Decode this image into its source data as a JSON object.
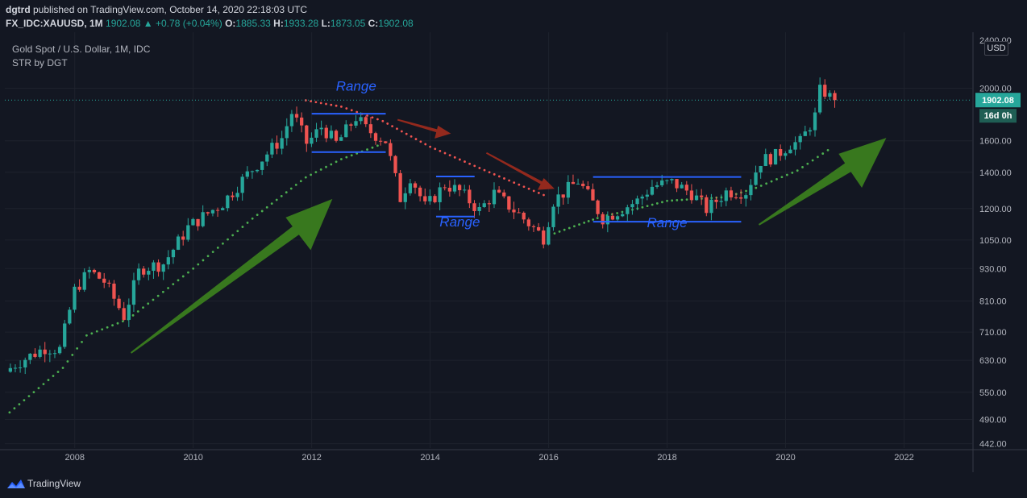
{
  "header": {
    "author": "dgtrd",
    "published_text": "published on TradingView.com, October 14, 2020 22:18:03 UTC",
    "symbol": "FX_IDC:XAUUSD, 1M",
    "last": "1902.08",
    "change": "+0.78 (+0.04%)",
    "o_label": "O:",
    "o_value": "1885.33",
    "h_label": "H:",
    "h_value": "1933.28",
    "l_label": "L:",
    "l_value": "1873.05",
    "c_label": "C:",
    "c_value": "1902.08"
  },
  "legend": {
    "title": "Gold Spot / U.S. Dollar, 1M, IDC",
    "indicator": "STR by DGT"
  },
  "price_axis": {
    "currency": "USD"
  },
  "price_badge": {
    "value": "1902.08",
    "countdown": "16d 0h"
  },
  "footer": {
    "brand": "TradingView"
  },
  "colors": {
    "background": "#131722",
    "bull": "#26a69a",
    "bear": "#ef5350",
    "range_line": "#2962ff",
    "arrow_up": "#3a7d1f",
    "arrow_down": "#9a2a1e",
    "stop_bull": "#4caf50",
    "stop_bear": "#ef5350"
  },
  "annotations": [
    {
      "text": "Range",
      "x": 2012.75,
      "y": 1980
    },
    {
      "text": "Range",
      "x": 2014.5,
      "y": 1112
    },
    {
      "text": "Range",
      "x": 2018.0,
      "y": 1108
    }
  ],
  "range_lines": [
    {
      "x1": 2012.0,
      "x2": 2013.25,
      "y": 1795
    },
    {
      "x1": 2012.0,
      "x2": 2013.25,
      "y": 1525
    },
    {
      "x1": 2014.1,
      "x2": 2014.75,
      "y": 1375
    },
    {
      "x1": 2014.1,
      "x2": 2014.75,
      "y": 1160
    },
    {
      "x1": 2016.75,
      "x2": 2019.25,
      "y": 1372
    },
    {
      "x1": 2016.75,
      "x2": 2019.25,
      "y": 1135
    }
  ],
  "arrows": [
    {
      "kind": "up",
      "x1": 2008.95,
      "y1": 650,
      "x2": 2012.35,
      "y2": 1250
    },
    {
      "kind": "down",
      "x1": 2013.45,
      "y1": 1750,
      "x2": 2014.35,
      "y2": 1650
    },
    {
      "kind": "down",
      "x1": 2014.95,
      "y1": 1520,
      "x2": 2016.1,
      "y2": 1305
    },
    {
      "kind": "up",
      "x1": 2019.55,
      "y1": 1120,
      "x2": 2021.7,
      "y2": 1620
    }
  ],
  "chart_data": {
    "type": "candlestick",
    "x_axis": {
      "unit": "year",
      "range": [
        2006.82,
        2023.15
      ],
      "ticks": [
        2008,
        2010,
        2012,
        2014,
        2016,
        2018,
        2020,
        2022
      ]
    },
    "y_axis": {
      "scale": "log",
      "unit": "USD",
      "range": [
        434,
        2520
      ],
      "ticks": [
        442,
        490,
        550,
        630,
        710,
        810,
        930,
        1050,
        1200,
        1400,
        1600,
        2000
      ],
      "top_tick_partial": "2400.00"
    },
    "grid": true,
    "last_price": 1902.08,
    "anchors": [
      {
        "t": 2006.83,
        "p": 600
      },
      {
        "t": 2007.0,
        "p": 620
      },
      {
        "t": 2007.5,
        "p": 665
      },
      {
        "t": 2007.75,
        "p": 660
      },
      {
        "t": 2008.0,
        "p": 850
      },
      {
        "t": 2008.25,
        "p": 920
      },
      {
        "t": 2008.5,
        "p": 880
      },
      {
        "t": 2008.83,
        "p": 760
      },
      {
        "t": 2009.1,
        "p": 930
      },
      {
        "t": 2009.5,
        "p": 950
      },
      {
        "t": 2009.92,
        "p": 1110
      },
      {
        "t": 2010.5,
        "p": 1230
      },
      {
        "t": 2010.92,
        "p": 1390
      },
      {
        "t": 2011.5,
        "p": 1620
      },
      {
        "t": 2011.67,
        "p": 1810
      },
      {
        "t": 2011.92,
        "p": 1580
      },
      {
        "t": 2012.17,
        "p": 1700
      },
      {
        "t": 2012.42,
        "p": 1580
      },
      {
        "t": 2012.75,
        "p": 1770
      },
      {
        "t": 2012.92,
        "p": 1680
      },
      {
        "t": 2013.25,
        "p": 1600
      },
      {
        "t": 2013.5,
        "p": 1250
      },
      {
        "t": 2013.67,
        "p": 1380
      },
      {
        "t": 2013.92,
        "p": 1205
      },
      {
        "t": 2014.25,
        "p": 1330
      },
      {
        "t": 2014.5,
        "p": 1290
      },
      {
        "t": 2014.83,
        "p": 1190
      },
      {
        "t": 2015.08,
        "p": 1280
      },
      {
        "t": 2015.5,
        "p": 1170
      },
      {
        "t": 2015.92,
        "p": 1060
      },
      {
        "t": 2016.08,
        "p": 1240
      },
      {
        "t": 2016.5,
        "p": 1350
      },
      {
        "t": 2016.92,
        "p": 1150
      },
      {
        "t": 2017.5,
        "p": 1240
      },
      {
        "t": 2017.75,
        "p": 1320
      },
      {
        "t": 2018.08,
        "p": 1340
      },
      {
        "t": 2018.42,
        "p": 1280
      },
      {
        "t": 2018.67,
        "p": 1195
      },
      {
        "t": 2019.0,
        "p": 1290
      },
      {
        "t": 2019.33,
        "p": 1290
      },
      {
        "t": 2019.58,
        "p": 1470
      },
      {
        "t": 2019.83,
        "p": 1500
      },
      {
        "t": 2020.08,
        "p": 1580
      },
      {
        "t": 2020.25,
        "p": 1590
      },
      {
        "t": 2020.5,
        "p": 1780
      },
      {
        "t": 2020.58,
        "p": 1975
      },
      {
        "t": 2020.67,
        "p": 1968
      },
      {
        "t": 2020.79,
        "p": 1902
      }
    ],
    "trailing_stop": [
      {
        "t": 2006.9,
        "p": 505,
        "dir": "bull"
      },
      {
        "t": 2007.8,
        "p": 610,
        "dir": "bull"
      },
      {
        "t": 2008.2,
        "p": 700,
        "dir": "bull"
      },
      {
        "t": 2008.9,
        "p": 750,
        "dir": "bull"
      },
      {
        "t": 2010.0,
        "p": 930,
        "dir": "bull"
      },
      {
        "t": 2011.0,
        "p": 1150,
        "dir": "bull"
      },
      {
        "t": 2011.9,
        "p": 1370,
        "dir": "bull"
      },
      {
        "t": 2012.5,
        "p": 1480,
        "dir": "bull"
      },
      {
        "t": 2013.2,
        "p": 1580,
        "dir": "bull"
      },
      {
        "t": 2011.9,
        "p": 1900,
        "dir": "bear"
      },
      {
        "t": 2012.5,
        "p": 1850,
        "dir": "bear"
      },
      {
        "t": 2013.2,
        "p": 1740,
        "dir": "bear"
      },
      {
        "t": 2014.0,
        "p": 1560,
        "dir": "bear"
      },
      {
        "t": 2015.0,
        "p": 1400,
        "dir": "bear"
      },
      {
        "t": 2016.0,
        "p": 1260,
        "dir": "bear"
      },
      {
        "t": 2016.1,
        "p": 1080,
        "dir": "bull"
      },
      {
        "t": 2016.6,
        "p": 1130,
        "dir": "bull"
      },
      {
        "t": 2016.9,
        "p": 1160,
        "dir": "bull"
      },
      {
        "t": 2017.5,
        "p": 1200,
        "dir": "bull"
      },
      {
        "t": 2018.0,
        "p": 1240,
        "dir": "bull"
      },
      {
        "t": 2019.0,
        "p": 1260,
        "dir": "bull"
      },
      {
        "t": 2019.5,
        "p": 1310,
        "dir": "bull"
      },
      {
        "t": 2020.2,
        "p": 1410,
        "dir": "bull"
      },
      {
        "t": 2020.8,
        "p": 1560,
        "dir": "bull"
      }
    ]
  }
}
